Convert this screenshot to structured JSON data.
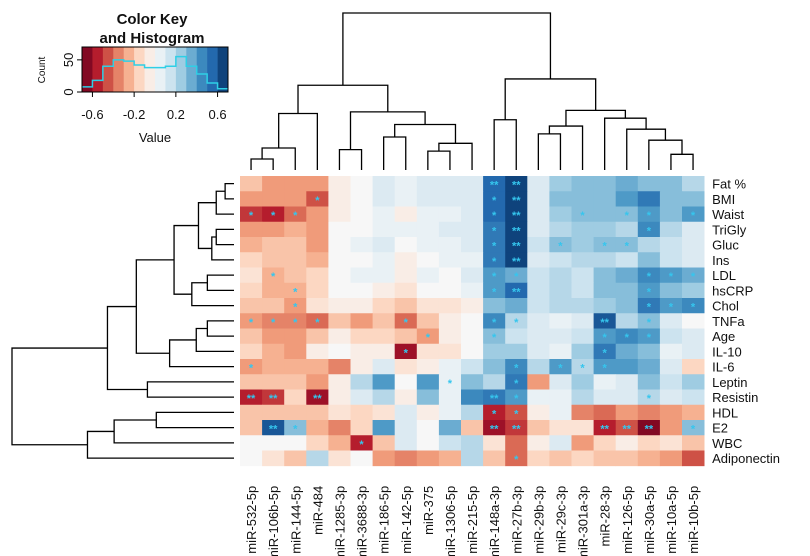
{
  "chart_data": {
    "type": "heatmap",
    "color_key": {
      "title_line1": "Color Key",
      "title_line2": "and Histogram",
      "xlabel": "Value",
      "ylabel": "Count",
      "xticks": [
        "-0.6",
        "-0.2",
        "0.2",
        "0.6"
      ],
      "xtick_values": [
        -0.6,
        -0.2,
        0.2,
        0.6
      ],
      "yticks": [
        "0",
        "50"
      ],
      "ytick_values": [
        0,
        50
      ],
      "xlim": [
        -0.7,
        0.7
      ],
      "ylim": [
        0,
        70
      ],
      "colors": [
        "#67001f",
        "#b2182b",
        "#d6604d",
        "#f4a582",
        "#fddbc7",
        "#f7f7f7",
        "#d1e5f0",
        "#92c5de",
        "#4393c3",
        "#2166ac",
        "#053061"
      ],
      "histogram_x": [
        -0.65,
        -0.55,
        -0.45,
        -0.35,
        -0.25,
        -0.15,
        -0.05,
        0.05,
        0.15,
        0.25,
        0.35,
        0.45,
        0.55,
        0.65
      ],
      "histogram_y": [
        8,
        18,
        40,
        50,
        48,
        42,
        38,
        38,
        40,
        55,
        40,
        28,
        14,
        5
      ],
      "histogram_color": "#2ecfe6"
    },
    "rows": [
      "Fat %",
      "BMI",
      "Waist",
      "TriGly",
      "Gluc",
      "Ins",
      "LDL",
      "hsCRP",
      "Chol",
      "TNFa",
      "Age",
      "IL-10",
      "IL-6",
      "Leptin",
      "Resistin",
      "HDL",
      "E2",
      "WBC",
      "Adiponectin"
    ],
    "columns": [
      "miR-532-5p",
      "miR-106b-5p",
      "miR-144-5p",
      "miR-484",
      "miR-1285-3p",
      "miR-3688-3p",
      "miR-186-5p",
      "miR-142-5p",
      "miR-375",
      "miR-1306-5p",
      "miR-215-5p",
      "miR-148a-3p",
      "miR-27b-3p",
      "miR-29b-3p",
      "miR-29c-3p",
      "miR-301a-3p",
      "miR-28-3p",
      "miR-126-5p",
      "miR-30a-5p",
      "miR-10a-5p",
      "miR-10b-5p"
    ],
    "values": [
      [
        -0.2,
        -0.3,
        -0.3,
        -0.3,
        -0.05,
        0.0,
        0.1,
        0.05,
        0.1,
        0.1,
        0.1,
        0.55,
        0.65,
        0.1,
        0.25,
        0.3,
        0.3,
        0.35,
        0.3,
        0.3,
        0.2
      ],
      [
        -0.3,
        -0.3,
        -0.3,
        -0.45,
        -0.05,
        0.0,
        0.1,
        0.05,
        0.1,
        0.1,
        0.1,
        0.55,
        0.65,
        0.1,
        0.3,
        0.3,
        0.3,
        0.4,
        0.5,
        0.3,
        0.3
      ],
      [
        -0.5,
        -0.55,
        -0.4,
        -0.3,
        -0.05,
        0.0,
        0.05,
        -0.05,
        0.05,
        0.05,
        0.1,
        0.55,
        0.65,
        0.1,
        0.25,
        0.3,
        0.3,
        0.3,
        0.4,
        0.3,
        0.4
      ],
      [
        -0.3,
        -0.3,
        -0.25,
        -0.3,
        0.0,
        0.0,
        0.05,
        0.05,
        0.05,
        0.1,
        0.1,
        0.5,
        0.65,
        0.1,
        0.2,
        0.25,
        0.25,
        0.2,
        0.45,
        0.2,
        0.1
      ],
      [
        -0.25,
        -0.2,
        -0.2,
        -0.3,
        0.0,
        0.05,
        0.1,
        0.0,
        0.05,
        0.05,
        0.1,
        0.5,
        0.65,
        0.15,
        0.3,
        0.25,
        0.3,
        0.3,
        0.2,
        0.15,
        0.1
      ],
      [
        -0.15,
        -0.2,
        -0.2,
        -0.25,
        0.0,
        0.0,
        0.05,
        -0.05,
        0.0,
        0.05,
        0.05,
        0.5,
        0.65,
        0.1,
        0.15,
        0.2,
        0.2,
        0.15,
        0.3,
        0.15,
        0.1
      ],
      [
        -0.1,
        -0.25,
        -0.2,
        -0.15,
        0.0,
        0.05,
        0.05,
        -0.05,
        0.05,
        0.0,
        0.1,
        0.4,
        0.35,
        0.15,
        0.2,
        0.15,
        0.3,
        0.35,
        0.45,
        0.4,
        0.35
      ],
      [
        -0.15,
        -0.25,
        -0.25,
        -0.15,
        0.0,
        0.0,
        -0.05,
        -0.1,
        0.0,
        0.0,
        0.05,
        0.4,
        0.55,
        0.15,
        0.2,
        0.15,
        0.3,
        0.3,
        0.4,
        0.3,
        0.25
      ],
      [
        -0.2,
        -0.2,
        -0.3,
        -0.1,
        -0.05,
        -0.05,
        -0.15,
        -0.2,
        -0.1,
        -0.1,
        -0.05,
        0.3,
        0.35,
        0.15,
        0.2,
        0.2,
        0.25,
        0.3,
        0.5,
        0.4,
        0.45
      ],
      [
        -0.3,
        -0.35,
        -0.35,
        -0.4,
        -0.2,
        -0.3,
        -0.2,
        -0.4,
        -0.2,
        -0.05,
        0.0,
        0.45,
        0.2,
        0.1,
        0.05,
        0.1,
        0.6,
        0.2,
        0.3,
        0.1,
        0.0
      ],
      [
        -0.2,
        -0.3,
        -0.3,
        -0.2,
        -0.05,
        -0.15,
        -0.15,
        -0.2,
        -0.3,
        -0.05,
        0.0,
        0.3,
        0.15,
        0.1,
        0.1,
        0.15,
        0.4,
        0.45,
        0.4,
        0.15,
        0.1
      ],
      [
        -0.15,
        -0.25,
        -0.3,
        -0.05,
        0.0,
        -0.05,
        -0.05,
        -0.6,
        -0.1,
        -0.1,
        0.0,
        0.25,
        0.25,
        0.1,
        0.05,
        0.25,
        0.5,
        0.35,
        0.3,
        0.05,
        0.1
      ],
      [
        -0.3,
        -0.25,
        -0.25,
        -0.25,
        -0.35,
        -0.05,
        0.1,
        -0.1,
        -0.05,
        0.05,
        0.15,
        0.3,
        0.45,
        0.2,
        0.4,
        0.2,
        0.4,
        0.4,
        0.35,
        0.1,
        -0.15
      ],
      [
        -0.2,
        -0.2,
        -0.2,
        -0.3,
        -0.05,
        0.2,
        0.4,
        0.0,
        0.4,
        0.05,
        0.3,
        0.2,
        0.5,
        -0.3,
        0.1,
        0.25,
        0.05,
        0.1,
        0.3,
        0.15,
        0.25
      ],
      [
        -0.55,
        -0.5,
        -0.15,
        -0.6,
        -0.05,
        0.1,
        0.2,
        -0.05,
        0.3,
        0.05,
        0.45,
        0.5,
        0.4,
        0.05,
        0.05,
        0.2,
        0.1,
        0.1,
        0.2,
        0.1,
        0.15
      ],
      [
        -0.2,
        -0.2,
        -0.2,
        -0.2,
        -0.1,
        -0.15,
        -0.1,
        0.1,
        -0.05,
        0.05,
        0.2,
        -0.55,
        -0.45,
        -0.05,
        0.05,
        -0.35,
        -0.4,
        -0.3,
        -0.35,
        -0.3,
        -0.25
      ],
      [
        -0.2,
        0.6,
        0.3,
        -0.25,
        -0.35,
        -0.15,
        0.4,
        0.1,
        0.0,
        0.35,
        -0.2,
        -0.6,
        -0.5,
        -0.2,
        -0.1,
        -0.1,
        -0.55,
        -0.45,
        -0.65,
        -0.3,
        0.3
      ],
      [
        0.0,
        0.0,
        0.0,
        -0.15,
        -0.25,
        -0.55,
        -0.2,
        0.1,
        0.0,
        0.15,
        0.2,
        -0.1,
        -0.4,
        -0.05,
        0.1,
        -0.3,
        -0.15,
        -0.05,
        -0.15,
        -0.1,
        -0.2
      ],
      [
        0.0,
        -0.1,
        -0.2,
        0.2,
        -0.1,
        0.0,
        -0.3,
        -0.35,
        -0.3,
        -0.25,
        0.2,
        -0.2,
        -0.4,
        -0.15,
        -0.2,
        -0.15,
        -0.2,
        -0.2,
        -0.25,
        -0.3,
        -0.45
      ]
    ],
    "annotations": [
      {
        "row": "Fat %",
        "column": "miR-148a-3p",
        "label": "**"
      },
      {
        "row": "Fat %",
        "column": "miR-27b-3p",
        "label": "**"
      },
      {
        "row": "BMI",
        "column": "miR-484",
        "label": "*"
      },
      {
        "row": "BMI",
        "column": "miR-148a-3p",
        "label": "*"
      },
      {
        "row": "BMI",
        "column": "miR-27b-3p",
        "label": "**"
      },
      {
        "row": "Waist",
        "column": "miR-532-5p",
        "label": "*"
      },
      {
        "row": "Waist",
        "column": "miR-106b-5p",
        "label": "*"
      },
      {
        "row": "Waist",
        "column": "miR-144-5p",
        "label": "*"
      },
      {
        "row": "Waist",
        "column": "miR-148a-3p",
        "label": "*"
      },
      {
        "row": "Waist",
        "column": "miR-27b-3p",
        "label": "**"
      },
      {
        "row": "Waist",
        "column": "miR-301a-3p",
        "label": "*"
      },
      {
        "row": "Waist",
        "column": "miR-126-5p",
        "label": "*"
      },
      {
        "row": "Waist",
        "column": "miR-30a-5p",
        "label": "*"
      },
      {
        "row": "Waist",
        "column": "miR-10b-5p",
        "label": "*"
      },
      {
        "row": "TriGly",
        "column": "miR-148a-3p",
        "label": "*"
      },
      {
        "row": "TriGly",
        "column": "miR-27b-3p",
        "label": "**"
      },
      {
        "row": "TriGly",
        "column": "miR-30a-5p",
        "label": "*"
      },
      {
        "row": "Gluc",
        "column": "miR-148a-3p",
        "label": "*"
      },
      {
        "row": "Gluc",
        "column": "miR-27b-3p",
        "label": "**"
      },
      {
        "row": "Gluc",
        "column": "miR-29c-3p",
        "label": "*"
      },
      {
        "row": "Gluc",
        "column": "miR-28-3p",
        "label": "*"
      },
      {
        "row": "Gluc",
        "column": "miR-126-5p",
        "label": "*"
      },
      {
        "row": "Ins",
        "column": "miR-148a-3p",
        "label": "*"
      },
      {
        "row": "Ins",
        "column": "miR-27b-3p",
        "label": "**"
      },
      {
        "row": "LDL",
        "column": "miR-106b-5p",
        "label": "*"
      },
      {
        "row": "LDL",
        "column": "miR-148a-3p",
        "label": "*"
      },
      {
        "row": "LDL",
        "column": "miR-27b-3p",
        "label": "*"
      },
      {
        "row": "LDL",
        "column": "miR-30a-5p",
        "label": "*"
      },
      {
        "row": "LDL",
        "column": "miR-10a-5p",
        "label": "*"
      },
      {
        "row": "LDL",
        "column": "miR-10b-5p",
        "label": "*"
      },
      {
        "row": "hsCRP",
        "column": "miR-144-5p",
        "label": "*"
      },
      {
        "row": "hsCRP",
        "column": "miR-148a-3p",
        "label": "*"
      },
      {
        "row": "hsCRP",
        "column": "miR-27b-3p",
        "label": "**"
      },
      {
        "row": "hsCRP",
        "column": "miR-30a-5p",
        "label": "*"
      },
      {
        "row": "Chol",
        "column": "miR-144-5p",
        "label": "*"
      },
      {
        "row": "Chol",
        "column": "miR-30a-5p",
        "label": "*"
      },
      {
        "row": "Chol",
        "column": "miR-10a-5p",
        "label": "*"
      },
      {
        "row": "Chol",
        "column": "miR-10b-5p",
        "label": "*"
      },
      {
        "row": "TNFa",
        "column": "miR-532-5p",
        "label": "*"
      },
      {
        "row": "TNFa",
        "column": "miR-106b-5p",
        "label": "*"
      },
      {
        "row": "TNFa",
        "column": "miR-144-5p",
        "label": "*"
      },
      {
        "row": "TNFa",
        "column": "miR-484",
        "label": "*"
      },
      {
        "row": "TNFa",
        "column": "miR-142-5p",
        "label": "*"
      },
      {
        "row": "TNFa",
        "column": "miR-148a-3p",
        "label": "*"
      },
      {
        "row": "TNFa",
        "column": "miR-27b-3p",
        "label": "*"
      },
      {
        "row": "TNFa",
        "column": "miR-28-3p",
        "label": "**"
      },
      {
        "row": "TNFa",
        "column": "miR-30a-5p",
        "label": "*"
      },
      {
        "row": "Age",
        "column": "miR-375",
        "label": "*"
      },
      {
        "row": "Age",
        "column": "miR-148a-3p",
        "label": "*"
      },
      {
        "row": "Age",
        "column": "miR-28-3p",
        "label": "*"
      },
      {
        "row": "Age",
        "column": "miR-126-5p",
        "label": "*"
      },
      {
        "row": "Age",
        "column": "miR-30a-5p",
        "label": "*"
      },
      {
        "row": "IL-10",
        "column": "miR-142-5p",
        "label": "*"
      },
      {
        "row": "IL-10",
        "column": "miR-28-3p",
        "label": "*"
      },
      {
        "row": "IL-6",
        "column": "miR-532-5p",
        "label": "*"
      },
      {
        "row": "IL-6",
        "column": "miR-27b-3p",
        "label": "*"
      },
      {
        "row": "IL-6",
        "column": "miR-29c-3p",
        "label": "*"
      },
      {
        "row": "IL-6",
        "column": "miR-301a-3p",
        "label": "*"
      },
      {
        "row": "IL-6",
        "column": "miR-28-3p",
        "label": "*"
      },
      {
        "row": "Leptin",
        "column": "miR-1306-5p",
        "label": "*"
      },
      {
        "row": "Leptin",
        "column": "miR-27b-3p",
        "label": "*"
      },
      {
        "row": "Resistin",
        "column": "miR-532-5p",
        "label": "**"
      },
      {
        "row": "Resistin",
        "column": "miR-106b-5p",
        "label": "**"
      },
      {
        "row": "Resistin",
        "column": "miR-484",
        "label": "**"
      },
      {
        "row": "Resistin",
        "column": "miR-148a-3p",
        "label": "**"
      },
      {
        "row": "Resistin",
        "column": "miR-27b-3p",
        "label": "*"
      },
      {
        "row": "Resistin",
        "column": "miR-30a-5p",
        "label": "*"
      },
      {
        "row": "HDL",
        "column": "miR-148a-3p",
        "label": "*"
      },
      {
        "row": "HDL",
        "column": "miR-27b-3p",
        "label": "*"
      },
      {
        "row": "E2",
        "column": "miR-106b-5p",
        "label": "**"
      },
      {
        "row": "E2",
        "column": "miR-144-5p",
        "label": "*"
      },
      {
        "row": "E2",
        "column": "miR-148a-3p",
        "label": "**"
      },
      {
        "row": "E2",
        "column": "miR-27b-3p",
        "label": "**"
      },
      {
        "row": "E2",
        "column": "miR-28-3p",
        "label": "**"
      },
      {
        "row": "E2",
        "column": "miR-126-5p",
        "label": "**"
      },
      {
        "row": "E2",
        "column": "miR-30a-5p",
        "label": "**"
      },
      {
        "row": "E2",
        "column": "miR-10b-5p",
        "label": "*"
      },
      {
        "row": "WBC",
        "column": "miR-3688-3p",
        "label": "*"
      },
      {
        "row": "Adiponectin",
        "column": "miR-27b-3p",
        "label": "*"
      }
    ],
    "annotation_color": "#35c6ee",
    "column_dendrogram": true,
    "row_dendrogram": true
  }
}
